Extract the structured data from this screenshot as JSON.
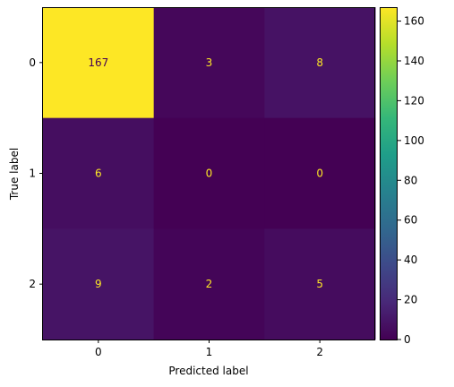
{
  "chart_data": {
    "type": "heatmap",
    "title": "",
    "xlabel": "Predicted label",
    "ylabel": "True label",
    "x_categories": [
      "0",
      "1",
      "2"
    ],
    "y_categories": [
      "0",
      "1",
      "2"
    ],
    "matrix": [
      [
        167,
        3,
        8
      ],
      [
        6,
        0,
        0
      ],
      [
        9,
        2,
        5
      ]
    ],
    "colormap": "viridis",
    "value_range": [
      0,
      167
    ],
    "colorbar_ticks": [
      0,
      20,
      40,
      60,
      80,
      100,
      120,
      140,
      160
    ],
    "colors": {
      "low_text": "#fde725",
      "high_text": "#440154"
    }
  }
}
